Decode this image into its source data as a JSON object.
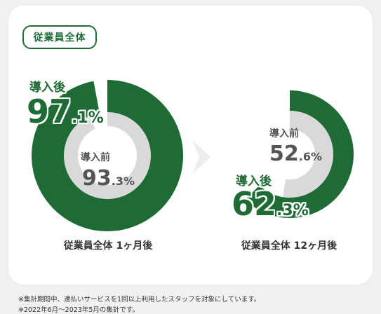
{
  "badge": "従業員全体",
  "labels": {
    "after": "導入後",
    "before": "導入前"
  },
  "colors": {
    "after": "#1e6b35",
    "before": "#d9d9d9",
    "background": "#ffffff"
  },
  "chart_data": [
    {
      "type": "donut",
      "caption": "従業員全体 1ヶ月後",
      "series": [
        {
          "name": "導入後",
          "value": 97.1,
          "int": "97",
          "dec": ".1",
          "unit": "%"
        },
        {
          "name": "導入前",
          "value": 93.3,
          "int": "93",
          "dec": ".3",
          "unit": "%"
        }
      ]
    },
    {
      "type": "donut",
      "caption": "従業員全体 12ヶ月後",
      "series": [
        {
          "name": "導入後",
          "value": 62.3,
          "int": "62",
          "dec": ".3",
          "unit": "%"
        },
        {
          "name": "導入前",
          "value": 52.6,
          "int": "52",
          "dec": ".6",
          "unit": "%"
        }
      ]
    }
  ],
  "notes": [
    "※集計期間中、速払いサービスを1回以上利用したスタッフを対象にしています。",
    "※2022年6月〜2023年5月の集計です。"
  ]
}
